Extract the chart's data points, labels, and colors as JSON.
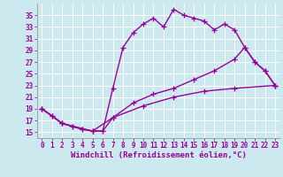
{
  "background_color": "#cce9f0",
  "grid_color": "#ffffff",
  "line_color": "#990099",
  "marker": "+",
  "markersize": 4,
  "linewidth": 1.0,
  "xlabel": "Windchill (Refroidissement éolien,°C)",
  "xlabel_fontsize": 6.5,
  "tick_fontsize": 5.5,
  "xlim": [
    -0.5,
    23.5
  ],
  "ylim": [
    14,
    37
  ],
  "yticks": [
    15,
    17,
    19,
    21,
    23,
    25,
    27,
    29,
    31,
    33,
    35
  ],
  "xticks": [
    0,
    1,
    2,
    3,
    4,
    5,
    6,
    7,
    8,
    9,
    10,
    11,
    12,
    13,
    14,
    15,
    16,
    17,
    18,
    19,
    20,
    21,
    22,
    23
  ],
  "series1": [
    [
      0,
      19
    ],
    [
      1,
      17.8
    ],
    [
      2,
      16.5
    ],
    [
      3,
      16
    ],
    [
      4,
      15.5
    ],
    [
      5,
      15.2
    ],
    [
      6,
      15.2
    ],
    [
      7,
      22.5
    ],
    [
      8,
      29.5
    ],
    [
      9,
      32
    ],
    [
      10,
      33.5
    ],
    [
      11,
      34.5
    ],
    [
      12,
      33
    ],
    [
      13,
      36
    ],
    [
      14,
      35
    ],
    [
      15,
      34.5
    ],
    [
      16,
      34
    ],
    [
      17,
      32.5
    ],
    [
      18,
      33.5
    ],
    [
      19,
      32.5
    ],
    [
      20,
      29.5
    ],
    [
      21,
      27
    ],
    [
      22,
      25.5
    ],
    [
      23,
      23
    ]
  ],
  "series2": [
    [
      0,
      19
    ],
    [
      1,
      17.8
    ],
    [
      2,
      16.5
    ],
    [
      3,
      16
    ],
    [
      4,
      15.5
    ],
    [
      5,
      15.2
    ],
    [
      6,
      15.2
    ],
    [
      7,
      17.5
    ],
    [
      9,
      20
    ],
    [
      11,
      21.5
    ],
    [
      13,
      22.5
    ],
    [
      15,
      24
    ],
    [
      17,
      25.5
    ],
    [
      19,
      27.5
    ],
    [
      20,
      29.5
    ],
    [
      21,
      27
    ],
    [
      22,
      25.5
    ],
    [
      23,
      23
    ]
  ],
  "series3": [
    [
      0,
      19
    ],
    [
      2,
      16.5
    ],
    [
      5,
      15.2
    ],
    [
      7,
      17.5
    ],
    [
      10,
      19.5
    ],
    [
      13,
      21
    ],
    [
      16,
      22
    ],
    [
      19,
      22.5
    ],
    [
      23,
      23
    ]
  ]
}
